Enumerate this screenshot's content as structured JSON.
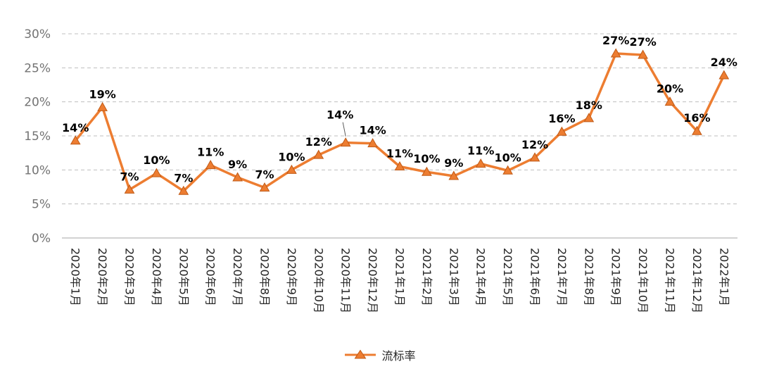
{
  "chart_data": {
    "type": "line",
    "title": "",
    "xlabel": "",
    "ylabel": "",
    "ylim": [
      0,
      30
    ],
    "ytick_step": 5,
    "ytick_labels": [
      "0%",
      "5%",
      "10%",
      "15%",
      "20%",
      "25%",
      "30%"
    ],
    "grid": true,
    "gridline_style": "dashed",
    "legend_position": "bottom",
    "categories": [
      "2020年1月",
      "2020年2月",
      "2020年3月",
      "2020年4月",
      "2020年5月",
      "2020年6月",
      "2020年7月",
      "2020年8月",
      "2020年9月",
      "2020年10月",
      "2020年11月",
      "2020年12月",
      "2021年1月",
      "2021年2月",
      "2021年3月",
      "2021年4月",
      "2021年5月",
      "2021年6月",
      "2021年7月",
      "2021年8月",
      "2021年9月",
      "2021年10月",
      "2021年11月",
      "2021年12月",
      "2022年1月"
    ],
    "series": [
      {
        "name": "流标率",
        "color": "#ED7D31",
        "marker": "triangle",
        "values": [
          14.3,
          19.2,
          7.1,
          9.5,
          6.9,
          10.7,
          8.9,
          7.4,
          10.0,
          12.2,
          14.0,
          13.9,
          10.5,
          9.7,
          9.1,
          10.9,
          9.9,
          11.8,
          15.6,
          17.6,
          27.1,
          26.9,
          20.0,
          15.7,
          23.9
        ],
        "labels": [
          "14%",
          "19%",
          "7%",
          "10%",
          "7%",
          "11%",
          "9%",
          "7%",
          "10%",
          "12%",
          "14%",
          "14%",
          "11%",
          "10%",
          "9%",
          "11%",
          "10%",
          "12%",
          "16%",
          "18%",
          "27%",
          "27%",
          "20%",
          "16%",
          "24%"
        ]
      }
    ],
    "annotations": [
      {
        "index": 10,
        "type": "leader-line"
      }
    ]
  },
  "colors": {
    "line": "#ED7D31",
    "marker_edge": "#C05A16",
    "gridline": "#BFBFBF",
    "axis_line": "#A6A6A6",
    "ytick_text": "#737373",
    "xtick_text": "#262626",
    "data_label_text": "#000000"
  },
  "legend": {
    "label": "流标率"
  }
}
